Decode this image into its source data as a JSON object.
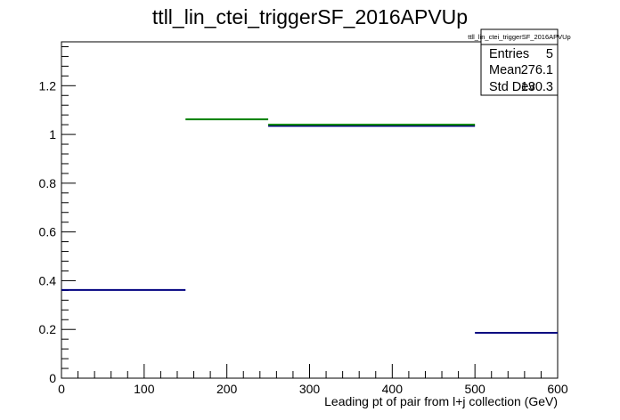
{
  "chart_data": {
    "type": "step",
    "title": "ttll_lin_ctei_triggerSF_2016APVUp",
    "xlabel": "Leading pt of pair from l+j collection (GeV)",
    "ylabel": "",
    "xlim": [
      0,
      600
    ],
    "ylim": [
      0,
      1.38
    ],
    "x_ticks": [
      0,
      100,
      200,
      300,
      400,
      500,
      600
    ],
    "y_ticks": [
      0,
      0.2,
      0.4,
      0.6,
      0.8,
      1,
      1.2
    ],
    "x_tick_labels": [
      "0",
      "100",
      "200",
      "300",
      "400",
      "500",
      "600"
    ],
    "y_tick_labels": [
      "0",
      "0.2",
      "0.4",
      "0.6",
      "0.8",
      "1",
      "1.2"
    ],
    "grid": false,
    "series": [
      {
        "color": "#000080",
        "bins": [
          {
            "x0": 0,
            "x1": 150,
            "y": 0.362
          },
          {
            "x0": 250,
            "x1": 500,
            "y": 1.035
          },
          {
            "x0": 500,
            "x1": 600,
            "y": 0.186
          }
        ]
      },
      {
        "color": "#008000",
        "bins": [
          {
            "x0": 150,
            "x1": 250,
            "y": 1.062
          },
          {
            "x0": 250,
            "x1": 500,
            "y": 1.04
          }
        ]
      }
    ],
    "stats_box": {
      "title": "ttll_lin_ctei_triggerSF_2016APVUp",
      "rows": [
        {
          "label": "Entries",
          "value": "5"
        },
        {
          "label": "Mean",
          "value": "276.1"
        },
        {
          "label": "Std Dev",
          "value": "130.3"
        }
      ],
      "placement": "top-right"
    }
  }
}
